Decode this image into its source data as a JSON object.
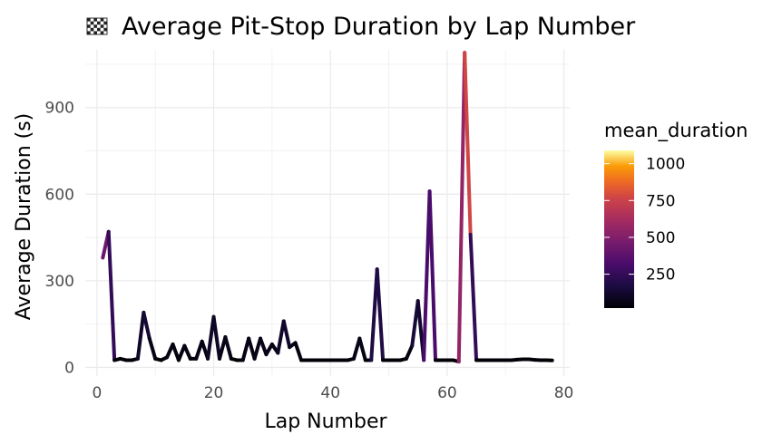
{
  "chart_data": {
    "type": "line",
    "title": "Average Pit-Stop Duration by Lap Number",
    "title_icon": "checkered-flag-icon",
    "xlabel": "Lap Number",
    "ylabel": "Average Duration (s)",
    "xlim": [
      -2,
      81
    ],
    "ylim": [
      -30,
      1100
    ],
    "x_ticks": [
      0,
      20,
      40,
      60,
      80
    ],
    "y_ticks": [
      0,
      300,
      600,
      900
    ],
    "grid": true,
    "color_scale": "inferno",
    "legend": {
      "title": "mean_duration",
      "position": "right",
      "range": [
        20,
        1090
      ],
      "ticks": [
        250,
        500,
        750,
        1000
      ]
    },
    "x": [
      1,
      2,
      3,
      4,
      5,
      6,
      7,
      8,
      9,
      10,
      11,
      12,
      13,
      14,
      15,
      16,
      17,
      18,
      19,
      20,
      21,
      22,
      23,
      24,
      25,
      26,
      27,
      28,
      29,
      30,
      31,
      32,
      33,
      34,
      35,
      36,
      37,
      38,
      39,
      40,
      41,
      42,
      43,
      44,
      45,
      46,
      47,
      48,
      49,
      50,
      51,
      52,
      53,
      54,
      55,
      56,
      57,
      58,
      59,
      60,
      61,
      62,
      63,
      64,
      65,
      66,
      67,
      68,
      69,
      70,
      71,
      72,
      73,
      74,
      75,
      76,
      77,
      78
    ],
    "y": [
      380,
      470,
      25,
      30,
      25,
      25,
      30,
      190,
      100,
      30,
      25,
      35,
      80,
      25,
      75,
      30,
      30,
      90,
      30,
      175,
      30,
      105,
      30,
      25,
      25,
      100,
      30,
      100,
      45,
      80,
      50,
      160,
      70,
      85,
      25,
      25,
      25,
      25,
      25,
      25,
      25,
      25,
      25,
      30,
      100,
      25,
      25,
      340,
      25,
      25,
      25,
      25,
      30,
      75,
      230,
      25,
      610,
      25,
      25,
      25,
      25,
      20,
      1090,
      460,
      25,
      25,
      25,
      25,
      25,
      25,
      25,
      27,
      28,
      28,
      26,
      25,
      25,
      24
    ]
  }
}
